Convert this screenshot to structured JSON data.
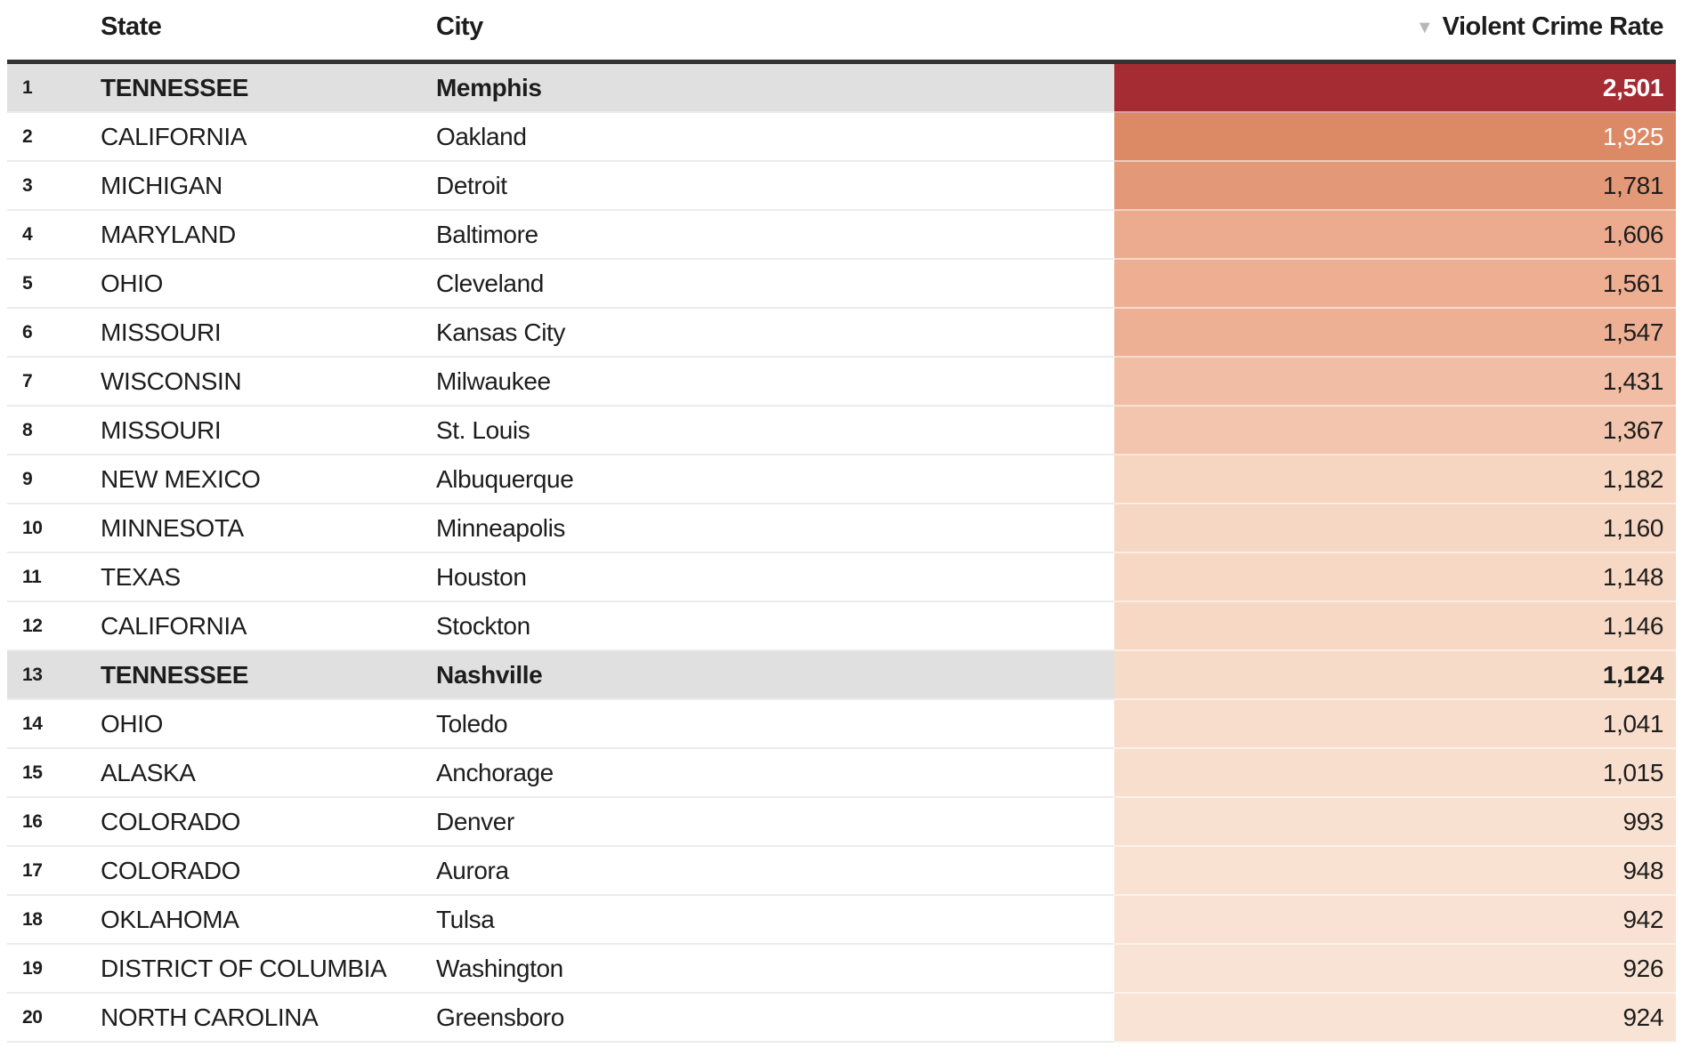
{
  "chart_data": {
    "type": "table",
    "columns": {
      "rank": "",
      "state": "State",
      "city": "City",
      "rate": "Violent Crime Rate"
    },
    "sort": {
      "column": "Violent Crime Rate",
      "direction": "desc",
      "icon": "▼"
    },
    "rows": [
      {
        "rank": "1",
        "state": "TENNESSEE",
        "city": "Memphis",
        "rate": 2501,
        "rate_label": "2,501",
        "cell_color": "#a52c33",
        "rate_text_color": "#ffffff",
        "highlighted": true
      },
      {
        "rank": "2",
        "state": "CALIFORNIA",
        "city": "Oakland",
        "rate": 1925,
        "rate_label": "1,925",
        "cell_color": "#dc8a65",
        "rate_text_color": "#ffffff",
        "highlighted": false
      },
      {
        "rank": "3",
        "state": "MICHIGAN",
        "city": "Detroit",
        "rate": 1781,
        "rate_label": "1,781",
        "cell_color": "#e39877",
        "rate_text_color": "#1d1d1d",
        "highlighted": false
      },
      {
        "rank": "4",
        "state": "MARYLAND",
        "city": "Baltimore",
        "rate": 1606,
        "rate_label": "1,606",
        "cell_color": "#ecab8e",
        "rate_text_color": "#1d1d1d",
        "highlighted": false
      },
      {
        "rank": "5",
        "state": "OHIO",
        "city": "Cleveland",
        "rate": 1561,
        "rate_label": "1,561",
        "cell_color": "#edae92",
        "rate_text_color": "#1d1d1d",
        "highlighted": false
      },
      {
        "rank": "6",
        "state": "MISSOURI",
        "city": "Kansas City",
        "rate": 1547,
        "rate_label": "1,547",
        "cell_color": "#eeb095",
        "rate_text_color": "#1d1d1d",
        "highlighted": false
      },
      {
        "rank": "7",
        "state": "WISCONSIN",
        "city": "Milwaukee",
        "rate": 1431,
        "rate_label": "1,431",
        "cell_color": "#f1bda5",
        "rate_text_color": "#1d1d1d",
        "highlighted": false
      },
      {
        "rank": "8",
        "state": "MISSOURI",
        "city": "St. Louis",
        "rate": 1367,
        "rate_label": "1,367",
        "cell_color": "#f3c5ae",
        "rate_text_color": "#1d1d1d",
        "highlighted": false
      },
      {
        "rank": "9",
        "state": "NEW MEXICO",
        "city": "Albuquerque",
        "rate": 1182,
        "rate_label": "1,182",
        "cell_color": "#f6d5c1",
        "rate_text_color": "#1d1d1d",
        "highlighted": false
      },
      {
        "rank": "10",
        "state": "MINNESOTA",
        "city": "Minneapolis",
        "rate": 1160,
        "rate_label": "1,160",
        "cell_color": "#f6d7c3",
        "rate_text_color": "#1d1d1d",
        "highlighted": false
      },
      {
        "rank": "11",
        "state": "TEXAS",
        "city": "Houston",
        "rate": 1148,
        "rate_label": "1,148",
        "cell_color": "#f7d8c4",
        "rate_text_color": "#1d1d1d",
        "highlighted": false
      },
      {
        "rank": "12",
        "state": "CALIFORNIA",
        "city": "Stockton",
        "rate": 1146,
        "rate_label": "1,146",
        "cell_color": "#f7d8c5",
        "rate_text_color": "#1d1d1d",
        "highlighted": false
      },
      {
        "rank": "13",
        "state": "TENNESSEE",
        "city": "Nashville",
        "rate": 1124,
        "rate_label": "1,124",
        "cell_color": "#f7dbc9",
        "rate_text_color": "#1d1d1d",
        "highlighted": true
      },
      {
        "rank": "14",
        "state": "OHIO",
        "city": "Toledo",
        "rate": 1041,
        "rate_label": "1,041",
        "cell_color": "#f8ddcc",
        "rate_text_color": "#1d1d1d",
        "highlighted": false
      },
      {
        "rank": "15",
        "state": "ALASKA",
        "city": "Anchorage",
        "rate": 1015,
        "rate_label": "1,015",
        "cell_color": "#f8decd",
        "rate_text_color": "#1d1d1d",
        "highlighted": false
      },
      {
        "rank": "16",
        "state": "COLORADO",
        "city": "Denver",
        "rate": 993,
        "rate_label": "993",
        "cell_color": "#f9e1d1",
        "rate_text_color": "#1d1d1d",
        "highlighted": false
      },
      {
        "rank": "17",
        "state": "COLORADO",
        "city": "Aurora",
        "rate": 948,
        "rate_label": "948",
        "cell_color": "#f9e2d2",
        "rate_text_color": "#1d1d1d",
        "highlighted": false
      },
      {
        "rank": "18",
        "state": "OKLAHOMA",
        "city": "Tulsa",
        "rate": 942,
        "rate_label": "942",
        "cell_color": "#f9e2d3",
        "rate_text_color": "#1d1d1d",
        "highlighted": false
      },
      {
        "rank": "19",
        "state": "DISTRICT OF COLUMBIA",
        "city": "Washington",
        "rate": 926,
        "rate_label": "926",
        "cell_color": "#f9e3d4",
        "rate_text_color": "#1d1d1d",
        "highlighted": false
      },
      {
        "rank": "20",
        "state": "NORTH CAROLINA",
        "city": "Greensboro",
        "rate": 924,
        "rate_label": "924",
        "cell_color": "#f9e3d4",
        "rate_text_color": "#1d1d1d",
        "highlighted": false
      }
    ],
    "layout": {
      "legend_position": "none",
      "heatmap": "rate column shaded dark red (high) to light peach (low)"
    }
  },
  "theme": {
    "header_border_color": "#333333",
    "row_separator_color": "#ececec",
    "highlight_row_bg": "#e0e0e0",
    "sort_icon_color": "#b7b7b7",
    "text_color": "#1d1d1d",
    "max_cell_color": "#a52c33"
  }
}
